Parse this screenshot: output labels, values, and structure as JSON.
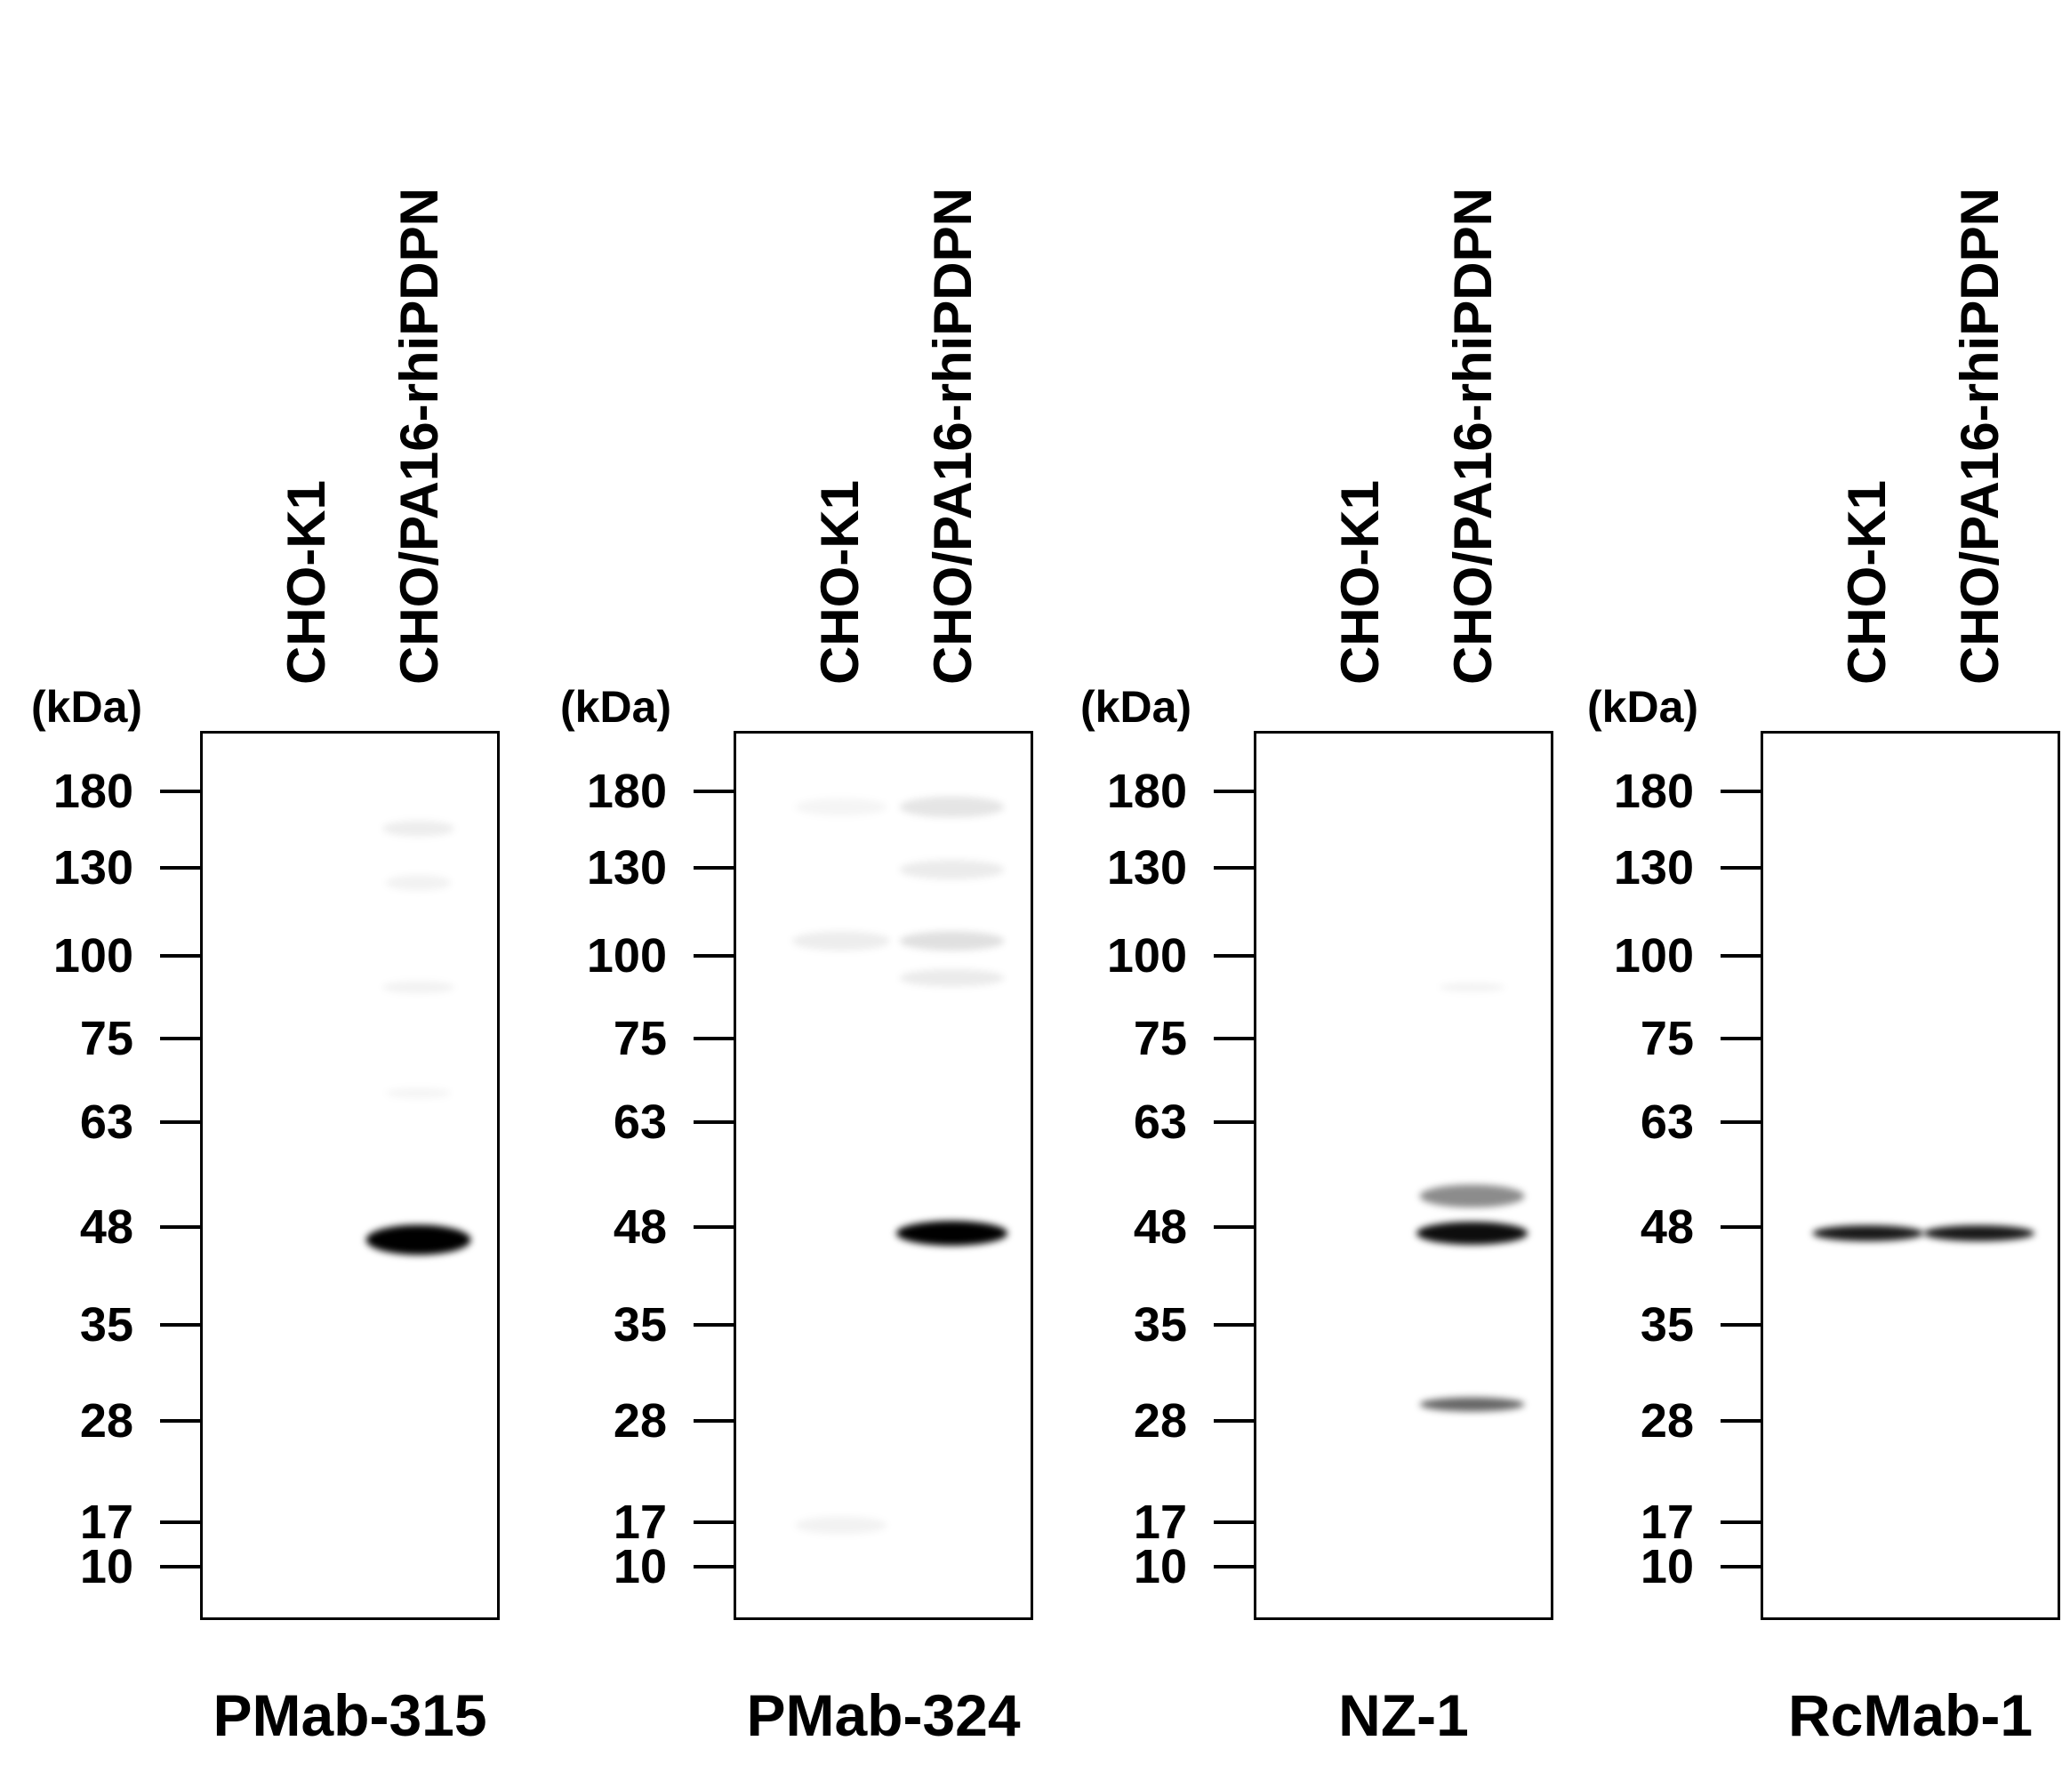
{
  "figure": {
    "kda_label": "(kDa)",
    "markers": [
      "180",
      "130",
      "100",
      "75",
      "63",
      "48",
      "35",
      "28",
      "17",
      "10"
    ],
    "panels": [
      {
        "antibody": "PMab-315",
        "lanes": [
          "CHO-K1",
          "CHO/PA16-rhiPDPN"
        ],
        "bands": [
          {
            "lane": 2,
            "kda": 46,
            "intensity": 1.0,
            "width": 0.8,
            "thickness": 34
          },
          {
            "lane": 2,
            "kda": 155,
            "intensity": 0.07,
            "width": 0.55,
            "thickness": 18
          },
          {
            "lane": 2,
            "kda": 125,
            "intensity": 0.05,
            "width": 0.5,
            "thickness": 18
          },
          {
            "lane": 2,
            "kda": 90,
            "intensity": 0.05,
            "width": 0.55,
            "thickness": 14
          },
          {
            "lane": 2,
            "kda": 67,
            "intensity": 0.04,
            "width": 0.5,
            "thickness": 12
          }
        ]
      },
      {
        "antibody": "PMab-324",
        "lanes": [
          "CHO-K1",
          "CHO/PA16-rhiPDPN"
        ],
        "bands": [
          {
            "lane": 2,
            "kda": 47,
            "intensity": 1.0,
            "width": 0.85,
            "thickness": 28
          },
          {
            "lane": 1,
            "kda": 105,
            "intensity": 0.07,
            "width": 0.75,
            "thickness": 22
          },
          {
            "lane": 2,
            "kda": 105,
            "intensity": 0.12,
            "width": 0.8,
            "thickness": 22
          },
          {
            "lane": 2,
            "kda": 170,
            "intensity": 0.1,
            "width": 0.8,
            "thickness": 24
          },
          {
            "lane": 2,
            "kda": 130,
            "intensity": 0.08,
            "width": 0.8,
            "thickness": 22
          },
          {
            "lane": 2,
            "kda": 93,
            "intensity": 0.08,
            "width": 0.8,
            "thickness": 20
          },
          {
            "lane": 1,
            "kda": 170,
            "intensity": 0.04,
            "width": 0.7,
            "thickness": 20
          },
          {
            "lane": 1,
            "kda": 16,
            "intensity": 0.05,
            "width": 0.7,
            "thickness": 20
          }
        ]
      },
      {
        "antibody": "NZ-1",
        "lanes": [
          "CHO-K1",
          "CHO/PA16-rhiPDPN"
        ],
        "bands": [
          {
            "lane": 2,
            "kda": 47,
            "intensity": 0.95,
            "width": 0.85,
            "thickness": 26
          },
          {
            "lane": 2,
            "kda": 52,
            "intensity": 0.45,
            "width": 0.8,
            "thickness": 26
          },
          {
            "lane": 2,
            "kda": 29,
            "intensity": 0.6,
            "width": 0.8,
            "thickness": 16
          },
          {
            "lane": 2,
            "kda": 90,
            "intensity": 0.05,
            "width": 0.5,
            "thickness": 10
          }
        ]
      },
      {
        "antibody": "RcMab-1",
        "lanes": [
          "CHO-K1",
          "CHO/PA16-rhiPDPN"
        ],
        "bands": [
          {
            "lane": 1,
            "kda": 47,
            "intensity": 0.9,
            "width": 0.85,
            "thickness": 18
          },
          {
            "lane": 2,
            "kda": 47,
            "intensity": 0.9,
            "width": 0.85,
            "thickness": 18
          }
        ]
      }
    ]
  }
}
